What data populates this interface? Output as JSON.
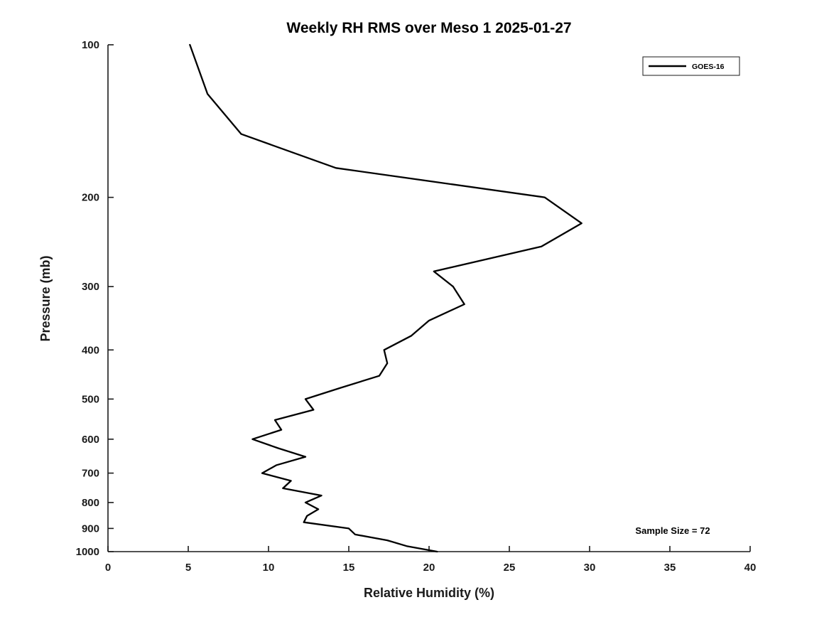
{
  "chart_data": {
    "type": "line",
    "title": "Weekly RH RMS over Meso 1 2025-01-27",
    "xlabel": "Relative Humidity (%)",
    "ylabel": "Pressure (mb)",
    "xlim": [
      0,
      40
    ],
    "x_ticks": [
      0,
      5,
      10,
      15,
      20,
      25,
      30,
      35,
      40
    ],
    "ylim": [
      100,
      1000
    ],
    "y_scale": "log",
    "y_inverted": true,
    "y_ticks": [
      100,
      200,
      300,
      400,
      500,
      600,
      700,
      800,
      900,
      1000
    ],
    "grid": false,
    "axis_color": "#1a1a1a",
    "background_color": "#ffffff",
    "legend": {
      "position": "top-right",
      "entries": [
        {
          "label": "GOES-16",
          "color": "#000000",
          "line_width": 2.5
        }
      ]
    },
    "annotation": "Sample Size = 72",
    "series": [
      {
        "name": "GOES-16",
        "color": "#000000",
        "line_width": 2.3,
        "pressure_mb": [
          100,
          125,
          150,
          175,
          200,
          225,
          250,
          280,
          300,
          325,
          350,
          375,
          400,
          425,
          450,
          475,
          500,
          525,
          550,
          575,
          600,
          625,
          650,
          675,
          700,
          725,
          750,
          775,
          800,
          825,
          850,
          875,
          900,
          925,
          950,
          975,
          1000
        ],
        "rh_percent": [
          5.1,
          6.2,
          8.3,
          14.2,
          27.2,
          29.5,
          27.0,
          20.3,
          21.5,
          22.2,
          20.0,
          18.9,
          17.2,
          17.4,
          16.9,
          14.5,
          12.3,
          12.8,
          10.4,
          10.8,
          9.0,
          10.6,
          12.3,
          10.5,
          9.6,
          11.4,
          10.9,
          13.3,
          12.3,
          13.1,
          12.4,
          12.2,
          15.0,
          15.4,
          17.4,
          18.6,
          20.5
        ]
      }
    ]
  }
}
